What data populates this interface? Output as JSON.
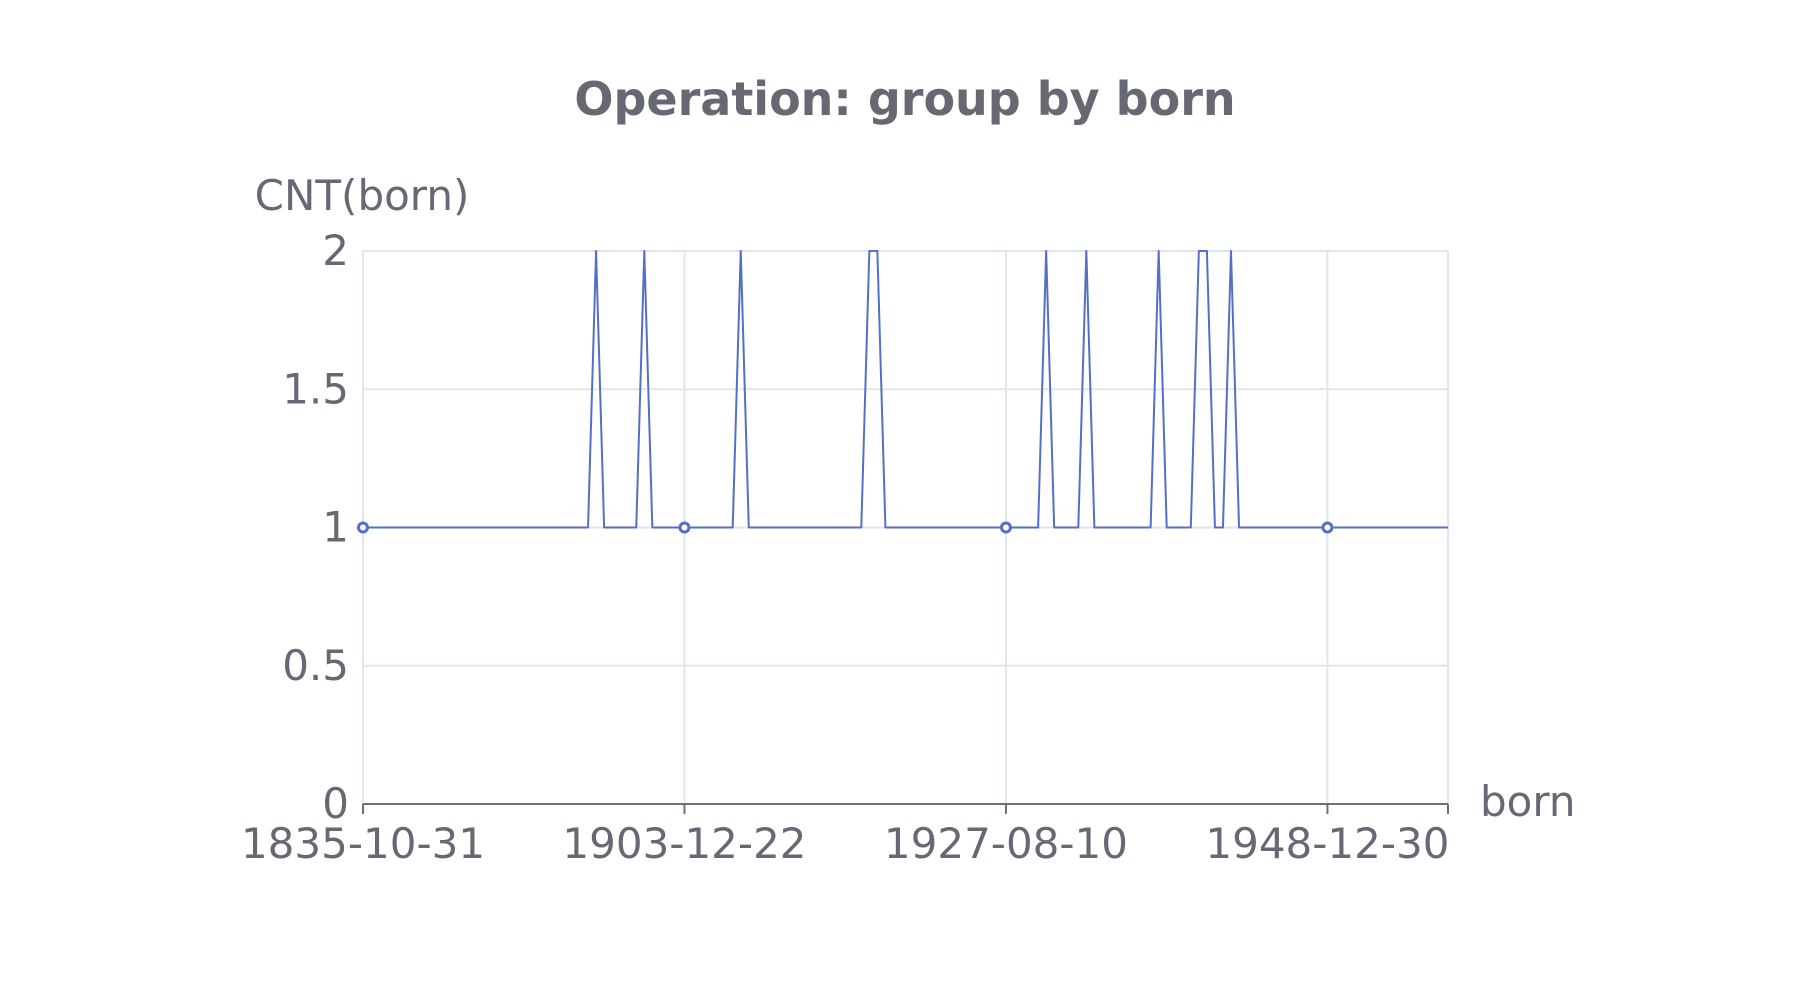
{
  "chart_data": {
    "type": "line",
    "title": "Operation: group by born",
    "xlabel": "born",
    "ylabel": "CNT(born)",
    "ylim": [
      0,
      2
    ],
    "y_ticks": [
      "0",
      "0.5",
      "1",
      "1.5",
      "2"
    ],
    "x_tick_labels": [
      "1835-10-31",
      "1903-12-22",
      "1927-08-10",
      "1948-12-30"
    ],
    "x_tick_index": [
      0,
      40,
      80,
      120
    ],
    "grid": true,
    "series_color": "#5470c6",
    "axis_color": "#6e7079",
    "grid_color": "#e0e6f1",
    "x_categories_count": 136,
    "spikes_value_2_at_index": [
      29,
      35,
      47,
      63,
      64,
      85,
      90,
      99,
      104,
      105,
      108
    ],
    "default_value": 1,
    "series": [
      {
        "name": "CNT(born)",
        "values": [
          1,
          1,
          1,
          1,
          1,
          1,
          1,
          1,
          1,
          1,
          1,
          1,
          1,
          1,
          1,
          1,
          1,
          1,
          1,
          1,
          1,
          1,
          1,
          1,
          1,
          1,
          1,
          1,
          1,
          2,
          1,
          1,
          1,
          1,
          1,
          2,
          1,
          1,
          1,
          1,
          1,
          1,
          1,
          1,
          1,
          1,
          1,
          2,
          1,
          1,
          1,
          1,
          1,
          1,
          1,
          1,
          1,
          1,
          1,
          1,
          1,
          1,
          1,
          2,
          2,
          1,
          1,
          1,
          1,
          1,
          1,
          1,
          1,
          1,
          1,
          1,
          1,
          1,
          1,
          1,
          1,
          1,
          1,
          1,
          1,
          2,
          1,
          1,
          1,
          1,
          2,
          1,
          1,
          1,
          1,
          1,
          1,
          1,
          1,
          2,
          1,
          1,
          1,
          1,
          2,
          2,
          1,
          1,
          2,
          1,
          1,
          1,
          1,
          1,
          1,
          1,
          1,
          1,
          1,
          1,
          1,
          1,
          1,
          1,
          1,
          1,
          1,
          1,
          1,
          1,
          1,
          1,
          1,
          1,
          1,
          1
        ]
      }
    ]
  }
}
